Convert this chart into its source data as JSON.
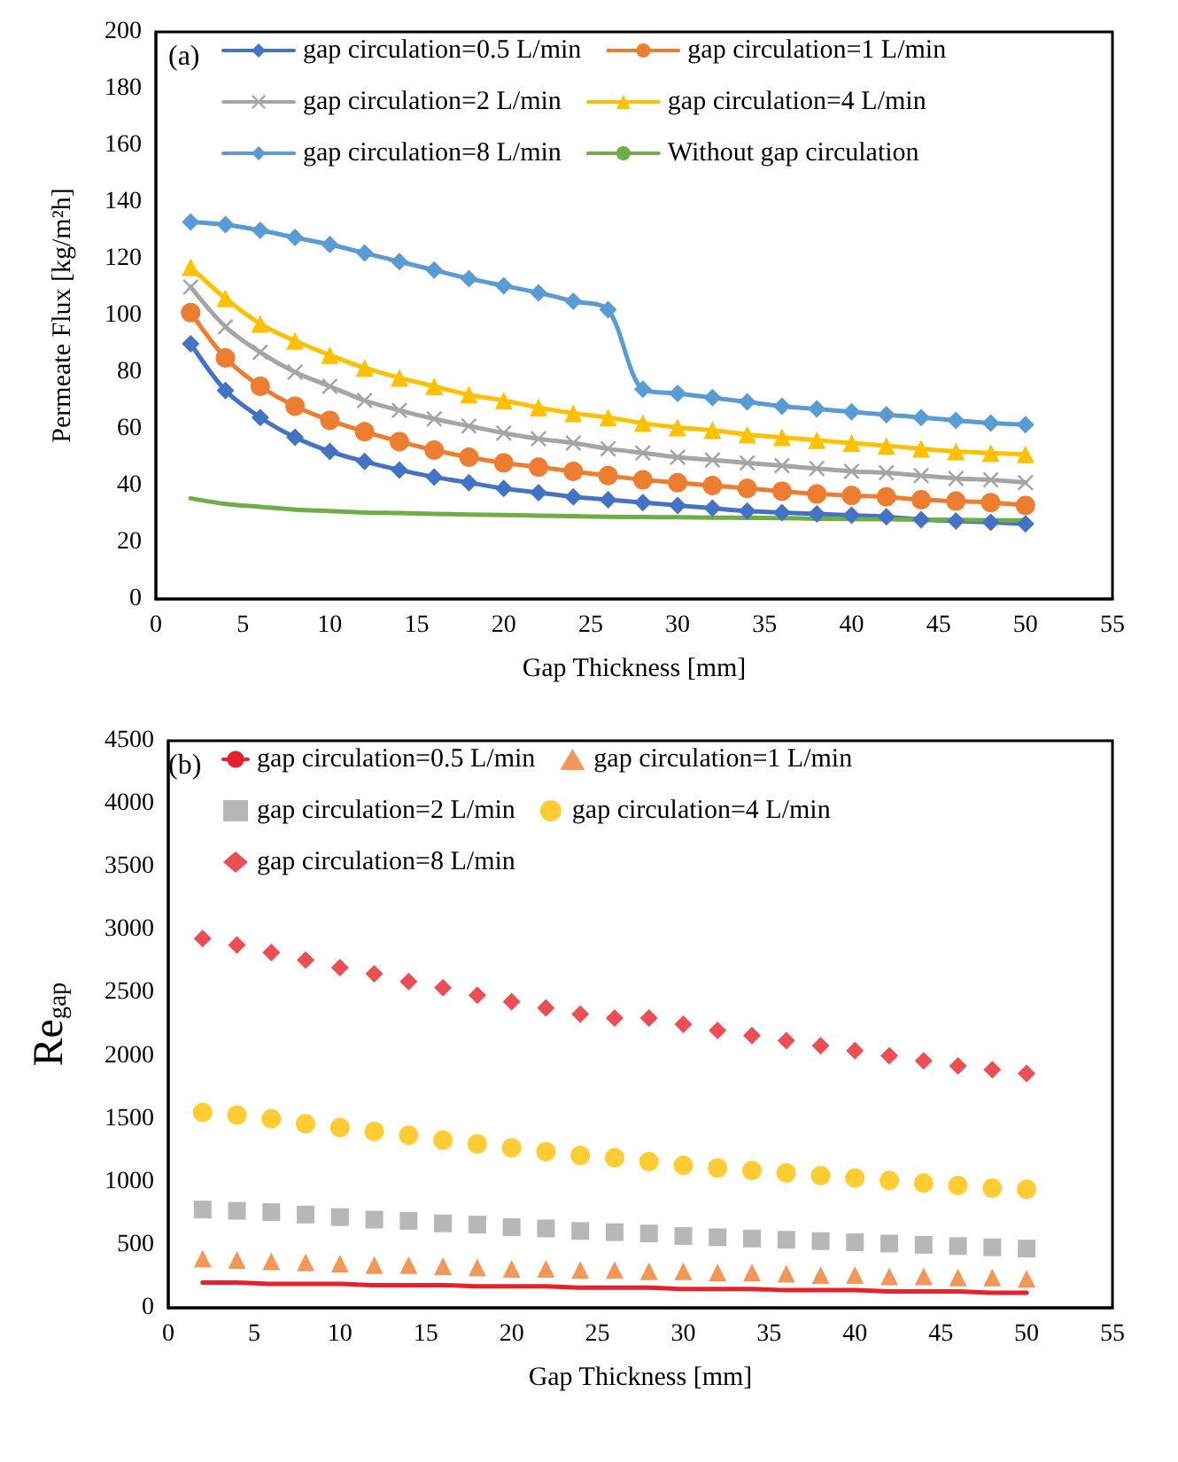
{
  "chart_data": [
    {
      "type": "line",
      "xlabel": "Gap Thickness [mm]",
      "ylabel": "Permeate Flux [kg/m²h]",
      "annotations": [
        "(a)"
      ],
      "x": [
        2,
        4,
        6,
        8,
        10,
        12,
        14,
        16,
        18,
        20,
        22,
        24,
        26,
        28,
        30,
        32,
        34,
        36,
        38,
        40,
        42,
        44,
        46,
        48,
        50
      ],
      "xlim": [
        0,
        55
      ],
      "xticks": [
        0,
        5,
        10,
        15,
        20,
        25,
        30,
        35,
        40,
        45,
        50,
        55
      ],
      "ylim": [
        0,
        200
      ],
      "yticks": [
        0,
        20,
        40,
        60,
        80,
        100,
        120,
        140,
        160,
        180,
        200
      ],
      "grid": false,
      "legend": "top",
      "series": [
        {
          "name": "gap circulation=0.5 L/min",
          "color": "#4472c4",
          "marker": "diamond",
          "values": [
            90,
            73.5,
            64,
            57,
            52,
            48.5,
            45.5,
            43,
            41,
            39,
            37.5,
            36,
            35,
            34,
            33,
            32,
            31,
            30.5,
            30,
            29.5,
            29,
            28,
            27.5,
            27,
            26.5
          ]
        },
        {
          "name": "gap circulation=1 L/min",
          "color": "#ed7d31",
          "marker": "circle",
          "values": [
            101,
            85,
            75,
            68,
            63,
            59,
            55.5,
            52.5,
            50,
            48,
            46.5,
            45,
            43.5,
            42,
            41,
            40,
            39,
            38,
            37,
            36.5,
            36,
            35,
            34.5,
            34,
            33
          ]
        },
        {
          "name": "gap circulation=2 L/min",
          "color": "#a5a5a5",
          "marker": "cross",
          "values": [
            110,
            96,
            87,
            80,
            75,
            70,
            66.5,
            63.5,
            61,
            58.5,
            56.5,
            55,
            53,
            51.5,
            50,
            49,
            48,
            47,
            46,
            45,
            44.5,
            43.5,
            42.5,
            42,
            41
          ]
        },
        {
          "name": "gap circulation=4 L/min",
          "color": "#ffc000",
          "marker": "triangle",
          "values": [
            117,
            106,
            97,
            91,
            86,
            81.5,
            78,
            75,
            72,
            70,
            67.5,
            65.5,
            64,
            62,
            60.5,
            59.5,
            58,
            57,
            56,
            55,
            54,
            53,
            52,
            51.5,
            51
          ]
        },
        {
          "name": "gap circulation=8 L/min",
          "color": "#5b9bd5",
          "marker": "diamond",
          "values": [
            133,
            132,
            130,
            127.5,
            125,
            122,
            119,
            116,
            113,
            110.5,
            108,
            105,
            102,
            74,
            72.5,
            71,
            69.5,
            68,
            67,
            66,
            65,
            64,
            63,
            62,
            61.5
          ]
        },
        {
          "name": "Without gap circulation",
          "color": "#70ad47",
          "marker": "none",
          "values": [
            35.5,
            33.5,
            32.5,
            31.5,
            31,
            30.5,
            30.3,
            30,
            29.8,
            29.6,
            29.4,
            29.2,
            29,
            28.9,
            28.8,
            28.7,
            28.6,
            28.5,
            28.3,
            28.2,
            28.1,
            28,
            27.9,
            27.8,
            27.7
          ]
        }
      ]
    },
    {
      "type": "scatter",
      "xlabel": "Gap Thickness [mm]",
      "ylabel": "Re$_{gap}$",
      "annotations": [
        "(b)"
      ],
      "x": [
        2,
        4,
        6,
        8,
        10,
        12,
        14,
        16,
        18,
        20,
        22,
        24,
        26,
        28,
        30,
        32,
        34,
        36,
        38,
        40,
        42,
        44,
        46,
        48,
        50
      ],
      "xlim": [
        0,
        55
      ],
      "xticks": [
        0,
        5,
        10,
        15,
        20,
        25,
        30,
        35,
        40,
        45,
        50,
        55
      ],
      "ylim": [
        0,
        4500
      ],
      "yticks": [
        0,
        500,
        1000,
        1500,
        2000,
        2500,
        3000,
        3500,
        4000,
        4500
      ],
      "grid": false,
      "legend": "top",
      "series": [
        {
          "name": "gap circulation=0.5 L/min",
          "color": "#e8202a",
          "type": "line",
          "marker": "none",
          "values": [
            200,
            200,
            190,
            190,
            190,
            180,
            180,
            180,
            170,
            170,
            170,
            160,
            160,
            160,
            150,
            150,
            150,
            140,
            140,
            140,
            130,
            130,
            130,
            120,
            120
          ]
        },
        {
          "name": "gap circulation=1 L/min",
          "color": "#ed7d31",
          "marker": "triangle",
          "values": [
            390,
            380,
            370,
            360,
            350,
            340,
            340,
            330,
            320,
            310,
            310,
            300,
            300,
            290,
            290,
            280,
            280,
            270,
            260,
            260,
            250,
            250,
            240,
            240,
            230
          ]
        },
        {
          "name": "gap circulation=2 L/min",
          "color": "#a5a5a5",
          "marker": "square",
          "values": [
            780,
            770,
            760,
            740,
            720,
            700,
            690,
            670,
            660,
            640,
            630,
            610,
            600,
            590,
            570,
            560,
            550,
            540,
            530,
            520,
            510,
            500,
            490,
            480,
            470
          ]
        },
        {
          "name": "gap circulation=4 L/min",
          "color": "#ffc000",
          "marker": "circle",
          "values": [
            1550,
            1530,
            1500,
            1460,
            1430,
            1400,
            1370,
            1330,
            1300,
            1270,
            1240,
            1210,
            1190,
            1160,
            1130,
            1110,
            1090,
            1070,
            1050,
            1030,
            1010,
            990,
            970,
            950,
            940
          ]
        },
        {
          "name": "gap circulation=8 L/min",
          "color": "#e8202a",
          "marker": "diamond",
          "values": [
            2930,
            2880,
            2820,
            2760,
            2700,
            2650,
            2590,
            2540,
            2480,
            2430,
            2380,
            2330,
            2300,
            2300,
            2250,
            2200,
            2160,
            2120,
            2080,
            2040,
            2000,
            1960,
            1920,
            1890,
            1860
          ]
        }
      ]
    }
  ]
}
